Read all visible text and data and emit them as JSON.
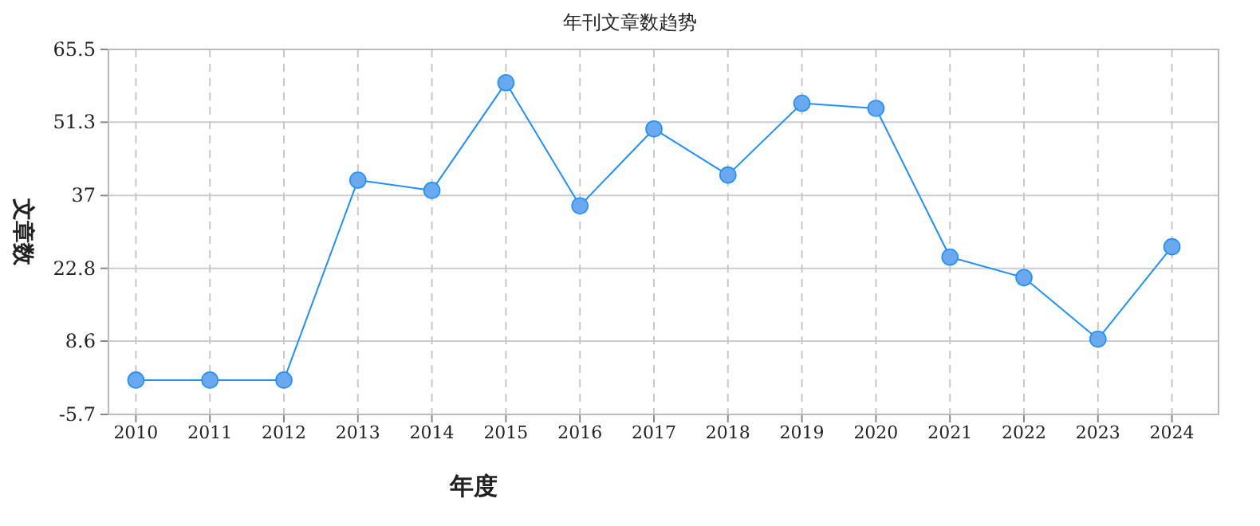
{
  "chart_data": {
    "type": "line",
    "title": "年刊文章数趋势",
    "xlabel": "年度",
    "ylabel": "文章数",
    "categories": [
      "2010",
      "2011",
      "2012",
      "2013",
      "2014",
      "2015",
      "2016",
      "2017",
      "2018",
      "2019",
      "2020",
      "2021",
      "2022",
      "2023",
      "2024"
    ],
    "series": [
      {
        "color": "#1e90ff",
        "values": [
          1,
          1,
          1,
          40,
          38,
          59,
          35,
          50,
          41,
          55,
          54,
          25,
          21,
          9,
          27
        ]
      }
    ],
    "ylim": [
      -5.7,
      65.5
    ],
    "yticks": [
      -5.7,
      8.6,
      22.8,
      37,
      51.3,
      65.5
    ],
    "grid": true,
    "marker": "circle",
    "line_style": "solid"
  }
}
